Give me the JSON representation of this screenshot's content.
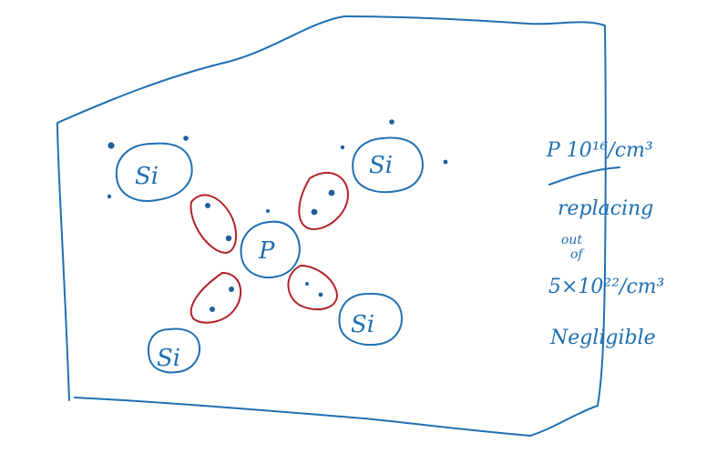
{
  "atoms": {
    "si_top_left": "Si",
    "si_top_right": "Si",
    "center": "P",
    "si_bottom_right": "Si",
    "si_bottom_left": "Si"
  },
  "notes": {
    "concentration": "P 10¹⁶/cm³",
    "replacing": "replacing",
    "out": "out",
    "of": "of",
    "si_density": "5×10²²/cm³",
    "conclusion": "Negligible"
  },
  "colors": {
    "ink_blue": "#1f6fb2",
    "ink_red": "#b0222a",
    "dot": "#1f5f9e"
  }
}
